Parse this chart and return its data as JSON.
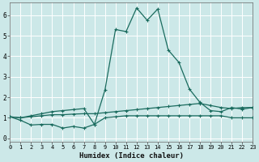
{
  "title": "",
  "xlabel": "Humidex (Indice chaleur)",
  "ylabel": "",
  "bg_color": "#cce8e8",
  "line_color": "#1a6b5e",
  "grid_color": "#ffffff",
  "xlim": [
    0,
    23
  ],
  "ylim": [
    -0.15,
    6.6
  ],
  "xticks": [
    0,
    1,
    2,
    3,
    4,
    5,
    6,
    7,
    8,
    9,
    10,
    11,
    12,
    13,
    14,
    15,
    16,
    17,
    18,
    19,
    20,
    21,
    22,
    23
  ],
  "yticks": [
    0,
    1,
    2,
    3,
    4,
    5,
    6
  ],
  "series1": [
    1.05,
    0.88,
    0.65,
    0.68,
    0.68,
    0.5,
    0.58,
    0.5,
    0.68,
    1.0,
    1.05,
    1.1,
    1.1,
    1.1,
    1.1,
    1.1,
    1.1,
    1.1,
    1.1,
    1.1,
    1.1,
    1.0,
    1.0,
    1.0
  ],
  "series2": [
    1.05,
    1.0,
    1.05,
    1.1,
    1.15,
    1.15,
    1.18,
    1.2,
    1.2,
    1.25,
    1.3,
    1.35,
    1.4,
    1.45,
    1.5,
    1.55,
    1.6,
    1.65,
    1.7,
    1.6,
    1.5,
    1.45,
    1.5,
    1.5
  ],
  "series3": [
    1.05,
    1.0,
    1.1,
    1.2,
    1.3,
    1.35,
    1.4,
    1.45,
    0.68,
    2.35,
    5.3,
    5.2,
    6.35,
    5.75,
    6.3,
    4.3,
    3.7,
    2.4,
    1.75,
    1.35,
    1.3,
    1.5,
    1.42,
    1.5
  ]
}
